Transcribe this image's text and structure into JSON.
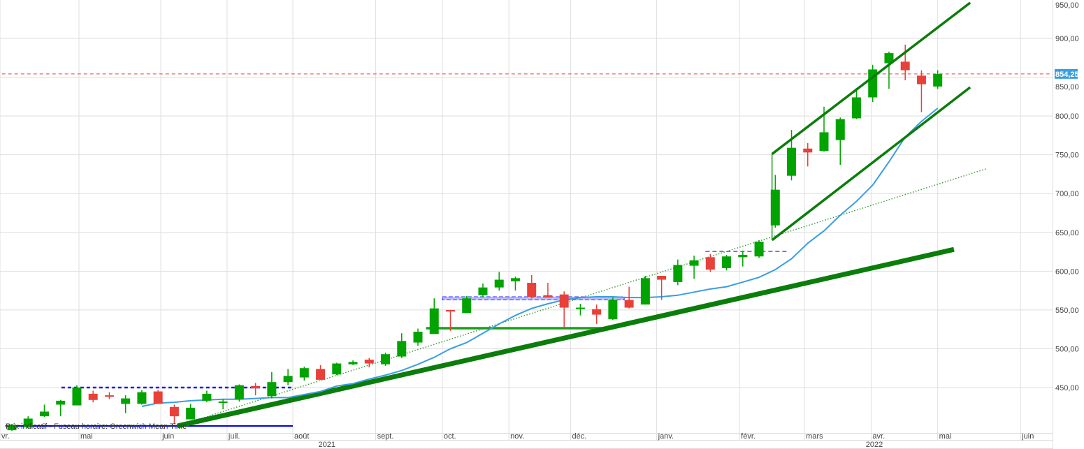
{
  "chart_data": {
    "type": "candlestick",
    "title": "",
    "xlabel": "",
    "ylabel": "",
    "ylim": [
      395,
      950
    ],
    "y_ticks": [
      450,
      500,
      550,
      600,
      650,
      700,
      750,
      800,
      850,
      900,
      950
    ],
    "y_tick_labels": [
      "450,00",
      "500,00",
      "550,00",
      "600,00",
      "650,00",
      "700,00",
      "750,00",
      "800,00",
      "850,00",
      "900,00",
      "950,00"
    ],
    "grid": true,
    "x_unit": "week index (first candle = 0)",
    "month_ticks": [
      {
        "label": "vr.",
        "at": -0.73
      },
      {
        "label": "mai",
        "at": 4.13
      },
      {
        "label": "juin",
        "at": 9.17
      },
      {
        "label": "juil.",
        "at": 13.25
      },
      {
        "label": "août",
        "at": 17.3
      },
      {
        "label": "sept.",
        "at": 22.4
      },
      {
        "label": "oct.",
        "at": 26.5
      },
      {
        "label": "nov.",
        "at": 30.6
      },
      {
        "label": "déc.",
        "at": 34.4
      },
      {
        "label": "janv.",
        "at": 39.7
      },
      {
        "label": "févr.",
        "at": 44.8
      },
      {
        "label": "mars",
        "at": 48.8
      },
      {
        "label": "avr.",
        "at": 52.9
      },
      {
        "label": "mai",
        "at": 57.0
      },
      {
        "label": "juin",
        "at": 62.1
      }
    ],
    "year_labels": [
      {
        "label": "2021",
        "at": 19.3
      },
      {
        "label": "2022",
        "at": 53.0
      }
    ],
    "candles_ohlc": [
      [
        395,
        403,
        394,
        402
      ],
      [
        399,
        413,
        398,
        410
      ],
      [
        413,
        428,
        412,
        419
      ],
      [
        428,
        434,
        413,
        433
      ],
      [
        427,
        453,
        427,
        450
      ],
      [
        442,
        446,
        431,
        434
      ],
      [
        440,
        444,
        435,
        439
      ],
      [
        429,
        440,
        417,
        436
      ],
      [
        429,
        447,
        428,
        444
      ],
      [
        445,
        447,
        429,
        429
      ],
      [
        425,
        428,
        403,
        413
      ],
      [
        409,
        429,
        409,
        424
      ],
      [
        433,
        446,
        431,
        442
      ],
      [
        431,
        435,
        422,
        432
      ],
      [
        435,
        454,
        432,
        453
      ],
      [
        452,
        456,
        440,
        449
      ],
      [
        439,
        470,
        436,
        457
      ],
      [
        457,
        474,
        453,
        465
      ],
      [
        463,
        477,
        459,
        475
      ],
      [
        474,
        479,
        460,
        460
      ],
      [
        467,
        482,
        466,
        481
      ],
      [
        480,
        485,
        479,
        483
      ],
      [
        486,
        488,
        476,
        481
      ],
      [
        480,
        495,
        478,
        493
      ],
      [
        490,
        520,
        488,
        510
      ],
      [
        508,
        526,
        504,
        522
      ],
      [
        519,
        565,
        519,
        552
      ],
      [
        550,
        550,
        523,
        548
      ],
      [
        546,
        568,
        546,
        565
      ],
      [
        569,
        584,
        567,
        579
      ],
      [
        579,
        599,
        575,
        589
      ],
      [
        587,
        593,
        575,
        591
      ],
      [
        585,
        595,
        565,
        567
      ],
      [
        569,
        585,
        566,
        566
      ],
      [
        570,
        574,
        527,
        553
      ],
      [
        552,
        558,
        543,
        553
      ],
      [
        551,
        557,
        532,
        544
      ],
      [
        538,
        566,
        537,
        563
      ],
      [
        563,
        580,
        552,
        553
      ],
      [
        557,
        594,
        557,
        591
      ],
      [
        594,
        594,
        563,
        589
      ],
      [
        586,
        615,
        582,
        608
      ],
      [
        607,
        620,
        590,
        614
      ],
      [
        618,
        622,
        599,
        602
      ],
      [
        604,
        621,
        601,
        619
      ],
      [
        618,
        626,
        606,
        621
      ],
      [
        619,
        640,
        617,
        638
      ],
      [
        659,
        724,
        656,
        705
      ],
      [
        723,
        782,
        717,
        759
      ],
      [
        758,
        765,
        735,
        753
      ],
      [
        755,
        812,
        754,
        779
      ],
      [
        769,
        798,
        737,
        796
      ],
      [
        797,
        836,
        796,
        824
      ],
      [
        824,
        866,
        818,
        860
      ],
      [
        868,
        883,
        835,
        881
      ],
      [
        870,
        892,
        846,
        859
      ],
      [
        852,
        859,
        805,
        841
      ],
      [
        838,
        859,
        835,
        854
      ]
    ],
    "sma": {
      "start_index": 8,
      "values": [
        425.7,
        430,
        431,
        433,
        434,
        435,
        435,
        436,
        437,
        437,
        441,
        445,
        452,
        455,
        461,
        466,
        472,
        480,
        489,
        500,
        508,
        520,
        532,
        543,
        552,
        558,
        563,
        566,
        567,
        567,
        566,
        566,
        567,
        569,
        573,
        577,
        580,
        586,
        592,
        602,
        616,
        636,
        652,
        672,
        690,
        711,
        741,
        773,
        793,
        810
      ]
    },
    "current_price": {
      "value": 854.25,
      "label": "854,25"
    },
    "drawings": {
      "support_trendline": [
        [
          10.2,
          400.5
        ],
        [
          58.0,
          628
        ]
      ],
      "channel_upper": [
        [
          46.8,
          751
        ],
        [
          59.0,
          946
        ]
      ],
      "channel_lower": [
        [
          46.8,
          640
        ],
        [
          59.0,
          837
        ]
      ],
      "channel_vertical": [
        [
          46.8,
          640
        ],
        [
          46.8,
          751
        ]
      ],
      "dotted_trendline": [
        [
          10.2,
          400.5
        ],
        [
          60.0,
          732
        ]
      ],
      "green_horizontal": [
        [
          25.5,
          526.5
        ],
        [
          37.0,
          526.5
        ]
      ],
      "blue_dashed_horizontal": [
        [
          3.05,
          450
        ],
        [
          17.3,
          450
        ]
      ],
      "blue_solid_horizontal": [
        [
          -0.4,
          400.5
        ],
        [
          17.3,
          400.5
        ]
      ],
      "blue_band": [
        [
          26.5,
          563
        ],
        [
          37.7,
          567
        ]
      ],
      "purple_dashed_horizontal": [
        [
          42.7,
          625.5
        ],
        [
          47.7,
          625.5
        ]
      ]
    },
    "colors": {
      "up": "#00a300",
      "down": "#e8413a",
      "sma": "#3a9ee0",
      "trend": "#0a7d0a",
      "current": "#3a9ee0"
    }
  },
  "footer": {
    "note": "Prix indicatif - Fuseau horaire: Greenwich Mean Time"
  }
}
